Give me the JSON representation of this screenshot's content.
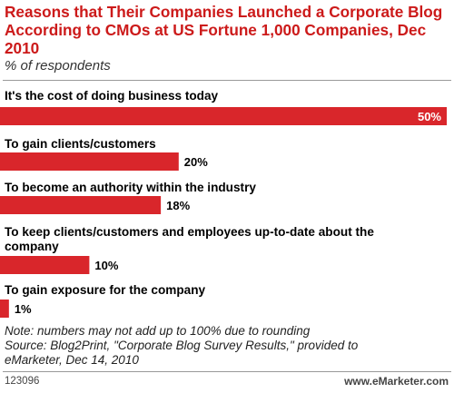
{
  "header": {
    "title": "Reasons that Their Companies Launched a Corporate Blog According to CMOs at US Fortune 1,000 Companies, Dec 2010",
    "subtitle": "% of respondents"
  },
  "chart_data": {
    "type": "bar",
    "orientation": "horizontal",
    "categories": [
      "It's the cost of doing business today",
      "To gain clients/customers",
      "To become an authority within the industry",
      "To keep clients/customers and employees up-to-date about the company",
      "To gain exposure for the company"
    ],
    "values": [
      50,
      20,
      18,
      10,
      1
    ],
    "value_labels": [
      "50%",
      "20%",
      "18%",
      "10%",
      "1%"
    ],
    "xlim": [
      0,
      50
    ],
    "grid": false,
    "bar_color": "#d9262b"
  },
  "footer": {
    "note_lines": [
      "Note: numbers may not add up to 100% due to rounding",
      "Source: Blog2Print, \"Corporate Blog Survey Results,\" provided to",
      "eMarketer, Dec 14, 2010"
    ],
    "chart_id": "123096",
    "brand": "www.eMarketer.com"
  },
  "colors": {
    "title": "#cc1a1a",
    "bar": "#d9262b"
  }
}
